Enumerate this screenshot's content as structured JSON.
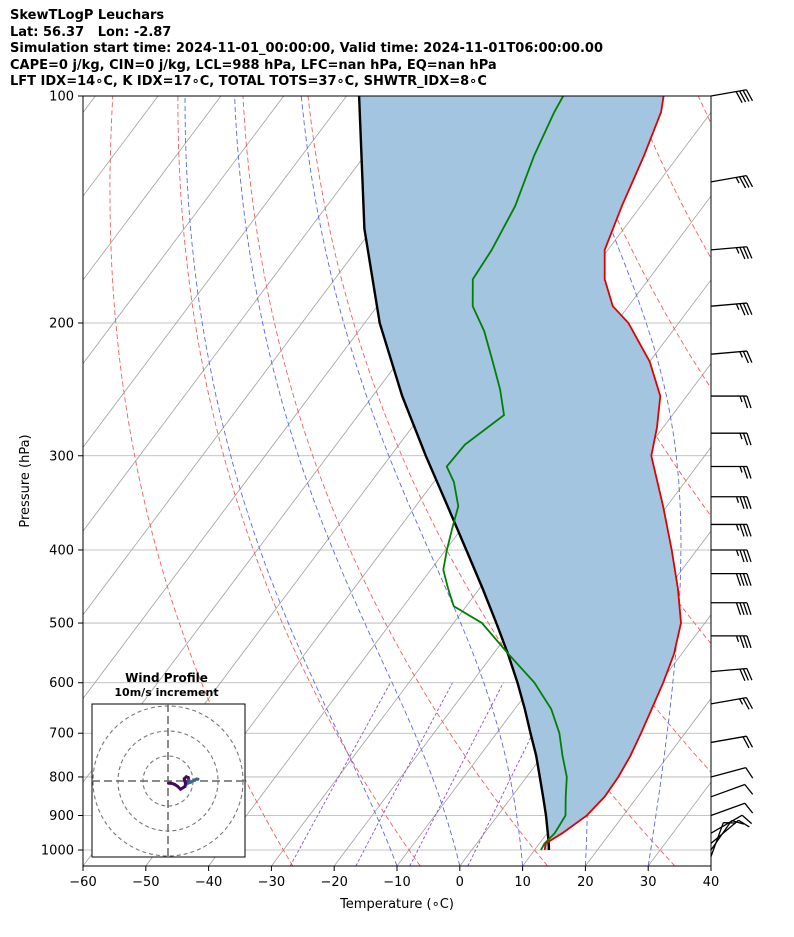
{
  "title_lines": [
    "SkewTLogP Leuchars",
    "Lat: 56.37   Lon: -2.87",
    "Simulation start time: 2024-11-01_00:00:00, Valid time: 2024-11-01T06:00:00.00",
    "CAPE=0 j/kg, CIN=0 j/kg, LCL=988 hPa, LFC=nan hPa, EQ=nan hPa",
    "LFT IDX=14∘C, K IDX=17∘C, TOTAL TOTS=37∘C, SHWTR_IDX=8∘C"
  ],
  "chart_data": {
    "type": "skewt-logp",
    "xlabel": "Temperature (∘C)",
    "ylabel": "Pressure (hPa)",
    "xlim": [
      -60,
      40
    ],
    "ylim": [
      1050,
      100
    ],
    "y_scale": "log",
    "grid": true,
    "x_ticks": [
      -60,
      -50,
      -40,
      -30,
      -20,
      -10,
      0,
      10,
      20,
      30,
      40
    ],
    "y_ticks": [
      100,
      200,
      300,
      400,
      500,
      600,
      700,
      800,
      900,
      1000
    ],
    "temperature": {
      "color": "#e00000",
      "p": [
        1000,
        980,
        950,
        900,
        850,
        800,
        750,
        700,
        650,
        600,
        550,
        500,
        450,
        400,
        350,
        300,
        275,
        250,
        225,
        200,
        190,
        175,
        160,
        140,
        120,
        105,
        100
      ],
      "t": [
        11.6,
        11.0,
        12.4,
        14.2,
        14.8,
        14.6,
        14.0,
        13.0,
        11.8,
        10.5,
        8.8,
        6.2,
        1.6,
        -4.0,
        -10.6,
        -18.5,
        -21.0,
        -24.2,
        -30.0,
        -38.0,
        -42.5,
        -47.0,
        -50.5,
        -53.0,
        -55.5,
        -58.0,
        -59.5
      ]
    },
    "dewpoint": {
      "color": "#008000",
      "p": [
        1000,
        980,
        950,
        900,
        850,
        800,
        750,
        700,
        650,
        600,
        550,
        500,
        475,
        450,
        425,
        400,
        375,
        350,
        325,
        310,
        290,
        265,
        245,
        225,
        205,
        190,
        175,
        160,
        140,
        120,
        105,
        100
      ],
      "t": [
        11.0,
        10.8,
        11.2,
        10.8,
        8.6,
        6.4,
        3.2,
        0.0,
        -4.2,
        -10.0,
        -17.5,
        -25.5,
        -32.0,
        -35.0,
        -38.0,
        -39.8,
        -41.5,
        -43.2,
        -46.8,
        -49.8,
        -49.5,
        -46.8,
        -50.5,
        -55.0,
        -60.0,
        -64.8,
        -68.0,
        -68.5,
        -70.0,
        -73.0,
        -75.0,
        -75.5
      ]
    },
    "parcel": {
      "color": "#000000",
      "p": [
        1000,
        988,
        950,
        900,
        850,
        800,
        750,
        700,
        650,
        600,
        550,
        500,
        450,
        400,
        350,
        300,
        250,
        200,
        150,
        100
      ],
      "t": [
        12.3,
        11.8,
        10.1,
        7.7,
        5.0,
        2.1,
        -1.0,
        -4.6,
        -8.4,
        -12.7,
        -17.6,
        -23.2,
        -29.5,
        -36.7,
        -44.9,
        -54.4,
        -65.3,
        -77.6,
        -91.3,
        -108.0
      ]
    },
    "shading": {
      "between": [
        "temperature",
        "parcel"
      ],
      "color": "#a3c5e0"
    },
    "wind_barbs": {
      "p": [
        100,
        130,
        160,
        190,
        220,
        250,
        280,
        310,
        340,
        370,
        400,
        430,
        470,
        520,
        580,
        640,
        720,
        800,
        850,
        900,
        950,
        980,
        1000,
        1020
      ],
      "speed_kt": [
        40,
        35,
        35,
        35,
        25,
        25,
        25,
        25,
        35,
        35,
        35,
        40,
        40,
        35,
        30,
        25,
        20,
        10,
        10,
        10,
        10,
        10,
        10,
        10
      ],
      "direction_deg": [
        260,
        260,
        265,
        265,
        265,
        270,
        270,
        270,
        270,
        270,
        270,
        270,
        270,
        270,
        265,
        260,
        260,
        255,
        250,
        250,
        240,
        230,
        215,
        200
      ]
    },
    "inset": {
      "title": "Wind Profile",
      "subtitle": "10m/s increment",
      "rings": [
        10,
        20,
        30
      ],
      "hodograph_u": [
        12.0,
        11.5,
        10.4,
        9.1,
        7.9,
        7.2,
        7.1,
        7.6,
        8.3,
        8.1,
        7.3,
        6.5,
        6.7,
        7.0,
        6.8,
        6.0,
        5.0,
        3.8,
        2.7,
        1.7,
        1.0,
        0.2
      ],
      "hodograph_v": [
        0.7,
        0.8,
        0.3,
        -0.5,
        -0.9,
        -1.4,
        -1.0,
        -0.2,
        0.5,
        1.4,
        1.7,
        0.9,
        0.0,
        -0.9,
        -2.2,
        -2.7,
        -3.3,
        -2.1,
        -1.4,
        -1.0,
        -0.9,
        -0.9
      ],
      "colormap": "viridis"
    }
  }
}
